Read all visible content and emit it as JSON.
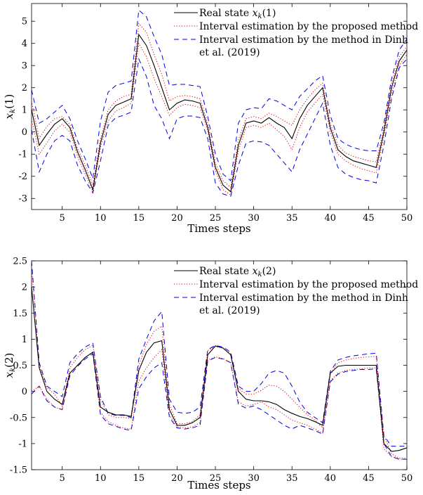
{
  "chart_data": [
    {
      "type": "line",
      "xlabel": "Times steps",
      "ylabel": "x_k(1)",
      "xlim": [
        1,
        50
      ],
      "ylim": [
        -3.5,
        5.8
      ],
      "xticks": [
        5,
        10,
        15,
        20,
        25,
        30,
        35,
        40,
        45,
        50
      ],
      "yticks": [
        -3,
        -2,
        -1,
        0,
        1,
        2,
        3,
        4,
        5
      ],
      "grid": false,
      "legend_position": "top-right",
      "legend": [
        "Real state x_k(1)",
        "Interval estimation by the proposed method",
        "Interval estimation by the method in Dinh",
        "et al. (2019)"
      ],
      "x": [
        1,
        2,
        3,
        4,
        5,
        6,
        7,
        8,
        9,
        10,
        11,
        12,
        13,
        14,
        15,
        16,
        17,
        18,
        19,
        20,
        21,
        22,
        23,
        24,
        25,
        26,
        27,
        28,
        29,
        30,
        31,
        32,
        33,
        34,
        35,
        36,
        37,
        38,
        39,
        40,
        41,
        42,
        43,
        44,
        45,
        46,
        47,
        48,
        49,
        50
      ],
      "series": [
        {
          "name": "Real state x_k(1)",
          "color": "#000000",
          "dash": "solid",
          "values": [
            1.0,
            -0.6,
            -0.1,
            0.35,
            0.6,
            0.2,
            -0.9,
            -1.7,
            -2.6,
            -0.5,
            0.8,
            1.2,
            1.35,
            1.5,
            4.4,
            3.9,
            3.0,
            2.0,
            1.0,
            1.3,
            1.45,
            1.4,
            1.3,
            0.2,
            -1.6,
            -2.4,
            -2.7,
            -0.6,
            0.4,
            0.5,
            0.4,
            0.65,
            0.4,
            0.2,
            -0.3,
            0.6,
            1.2,
            1.6,
            2.0,
            0.2,
            -0.8,
            -1.1,
            -1.3,
            -1.4,
            -1.5,
            -1.6,
            0.0,
            2.0,
            3.2,
            3.7
          ]
        },
        {
          "name": "Interval estimation by the proposed method (upper)",
          "color": "#e00000",
          "dash": "dotted",
          "values": [
            1.4,
            -0.3,
            0.25,
            0.6,
            0.7,
            0.35,
            -0.75,
            -1.5,
            -2.4,
            -0.3,
            1.0,
            1.4,
            1.6,
            1.7,
            4.9,
            4.5,
            3.5,
            2.6,
            1.4,
            1.6,
            1.65,
            1.6,
            1.5,
            0.4,
            -1.4,
            -2.2,
            -2.5,
            -0.35,
            0.6,
            0.7,
            0.6,
            0.85,
            0.7,
            0.5,
            0.3,
            1.0,
            1.5,
            1.9,
            2.2,
            0.4,
            -0.6,
            -0.95,
            -1.1,
            -1.2,
            -1.3,
            -1.35,
            0.2,
            2.2,
            3.4,
            3.85
          ]
        },
        {
          "name": "Interval estimation by the proposed method (lower)",
          "color": "#e00000",
          "dash": "dotted",
          "values": [
            0.6,
            -1.0,
            -0.5,
            0.05,
            0.35,
            0.0,
            -1.1,
            -1.9,
            -2.7,
            -0.7,
            0.5,
            0.95,
            1.1,
            1.3,
            4.0,
            3.4,
            2.4,
            1.6,
            0.75,
            1.1,
            1.25,
            1.2,
            1.1,
            0.05,
            -1.75,
            -2.6,
            -2.85,
            -0.85,
            0.2,
            0.3,
            0.2,
            0.4,
            0.1,
            -0.2,
            -0.8,
            0.2,
            0.9,
            1.3,
            1.7,
            0.0,
            -1.0,
            -1.3,
            -1.5,
            -1.65,
            -1.75,
            -1.85,
            -0.2,
            1.7,
            3.0,
            3.5
          ]
        },
        {
          "name": "Interval estimation by the method in Dinh et al. (2019) (upper)",
          "color": "#0000e0",
          "dash": "dashed",
          "values": [
            1.9,
            0.4,
            0.6,
            0.9,
            1.2,
            0.6,
            -0.4,
            -1.2,
            -2.1,
            0.5,
            1.8,
            2.1,
            2.2,
            2.3,
            5.5,
            5.2,
            4.3,
            3.5,
            2.1,
            2.15,
            2.15,
            2.1,
            2.05,
            0.7,
            -1.0,
            -1.9,
            -2.2,
            0.4,
            1.0,
            1.1,
            1.05,
            1.5,
            1.4,
            1.2,
            1.0,
            1.6,
            1.95,
            2.3,
            2.55,
            0.75,
            -0.3,
            -0.55,
            -0.7,
            -0.8,
            -0.85,
            -0.85,
            0.4,
            2.4,
            3.7,
            4.2
          ]
        },
        {
          "name": "Interval estimation by the method in Dinh et al. (2019) (lower)",
          "color": "#0000e0",
          "dash": "dashed",
          "values": [
            0.1,
            -1.8,
            -1.0,
            -0.4,
            -0.15,
            -0.4,
            -1.5,
            -2.2,
            -2.75,
            -1.3,
            0.3,
            0.65,
            0.75,
            0.9,
            3.3,
            2.5,
            1.2,
            0.6,
            -0.3,
            0.6,
            0.72,
            0.72,
            0.65,
            -0.3,
            -2.3,
            -2.8,
            -2.9,
            -1.5,
            -0.5,
            -0.4,
            -0.45,
            -0.6,
            -1.0,
            -1.4,
            -1.8,
            -0.8,
            -0.1,
            0.6,
            1.3,
            -0.6,
            -1.6,
            -1.9,
            -2.05,
            -2.15,
            -2.2,
            -2.3,
            -0.6,
            1.5,
            2.9,
            3.3
          ]
        }
      ]
    },
    {
      "type": "line",
      "xlabel": "Times steps",
      "ylabel": "x_k(2)",
      "xlim": [
        1,
        50
      ],
      "ylim": [
        -1.5,
        2.5
      ],
      "xticks": [
        5,
        10,
        15,
        20,
        25,
        30,
        35,
        40,
        45,
        50
      ],
      "yticks": [
        -1.5,
        -1,
        -0.5,
        0,
        0.5,
        1,
        1.5,
        2,
        2.5
      ],
      "grid": false,
      "legend_position": "top-right",
      "legend": [
        "Real state x_k(2)",
        "Interval estimation by the proposed method",
        "Interval estimation by the method in Dinh",
        "et al. (2019)"
      ],
      "x": [
        1,
        2,
        3,
        4,
        5,
        6,
        7,
        8,
        9,
        10,
        11,
        12,
        13,
        14,
        15,
        16,
        17,
        18,
        19,
        20,
        21,
        22,
        23,
        24,
        25,
        26,
        27,
        28,
        29,
        30,
        31,
        32,
        33,
        34,
        35,
        36,
        37,
        38,
        39,
        40,
        41,
        42,
        43,
        44,
        45,
        46,
        47,
        48,
        49,
        50
      ],
      "series": [
        {
          "name": "Real state x_k(2)",
          "color": "#000000",
          "dash": "solid",
          "values": [
            2.0,
            0.45,
            0.0,
            -0.15,
            -0.25,
            0.35,
            0.5,
            0.65,
            0.75,
            -0.3,
            -0.4,
            -0.45,
            -0.45,
            -0.48,
            0.4,
            0.75,
            0.93,
            0.97,
            -0.35,
            -0.65,
            -0.65,
            -0.6,
            -0.5,
            0.7,
            0.87,
            0.83,
            0.7,
            0.0,
            -0.15,
            -0.18,
            -0.18,
            -0.2,
            -0.25,
            -0.35,
            -0.42,
            -0.48,
            -0.52,
            -0.58,
            -0.65,
            0.35,
            0.48,
            0.5,
            0.5,
            0.5,
            0.5,
            0.5,
            -1.0,
            -1.15,
            -1.13,
            -1.08
          ]
        },
        {
          "name": "Interval estimation by the proposed method (upper)",
          "color": "#e00000",
          "dash": "dotted",
          "values": [
            2.4,
            0.5,
            0.07,
            -0.05,
            -0.28,
            0.45,
            0.65,
            0.8,
            0.88,
            -0.15,
            -0.45,
            -0.5,
            -0.5,
            -0.52,
            0.5,
            0.9,
            1.15,
            1.25,
            -0.25,
            -0.62,
            -0.62,
            -0.58,
            -0.45,
            0.78,
            0.86,
            0.83,
            0.72,
            0.05,
            -0.05,
            -0.05,
            0.02,
            0.12,
            0.1,
            0.0,
            -0.15,
            -0.3,
            -0.45,
            -0.55,
            -0.7,
            0.32,
            0.55,
            0.6,
            0.63,
            0.65,
            0.66,
            0.67,
            -0.85,
            -1.2,
            -1.28,
            -1.28
          ]
        },
        {
          "name": "Interval estimation by the proposed method (lower)",
          "color": "#e00000",
          "dash": "dotted",
          "values": [
            0.0,
            0.1,
            -0.15,
            -0.3,
            -0.35,
            0.35,
            0.5,
            0.65,
            0.75,
            -0.4,
            -0.58,
            -0.65,
            -0.7,
            -0.72,
            0.2,
            0.45,
            0.65,
            0.8,
            -0.45,
            -0.68,
            -0.7,
            -0.68,
            -0.6,
            0.6,
            0.66,
            0.63,
            0.55,
            -0.2,
            -0.28,
            -0.25,
            -0.2,
            -0.3,
            -0.35,
            -0.45,
            -0.55,
            -0.6,
            -0.65,
            -0.72,
            -0.8,
            0.2,
            0.35,
            0.4,
            0.42,
            0.43,
            0.45,
            0.45,
            -1.1,
            -1.25,
            -1.3,
            -1.3
          ]
        },
        {
          "name": "Interval estimation by the method in Dinh et al. (2019) (upper)",
          "color": "#0000e0",
          "dash": "dashed",
          "values": [
            2.5,
            0.55,
            0.1,
            0.0,
            -0.1,
            0.55,
            0.72,
            0.85,
            0.93,
            -0.1,
            -0.42,
            -0.46,
            -0.46,
            -0.5,
            0.62,
            1.0,
            1.35,
            1.53,
            -0.15,
            -0.4,
            -0.42,
            -0.4,
            -0.3,
            0.8,
            0.88,
            0.85,
            0.75,
            0.1,
            0.0,
            0.0,
            0.15,
            0.35,
            0.4,
            0.35,
            0.1,
            -0.2,
            -0.4,
            -0.5,
            -0.6,
            0.38,
            0.6,
            0.65,
            0.68,
            0.7,
            0.72,
            0.73,
            -0.85,
            -1.05,
            -1.05,
            -1.05
          ]
        },
        {
          "name": "Interval estimation by the method in Dinh et al. (2019) (lower)",
          "color": "#0000e0",
          "dash": "dashed",
          "values": [
            -0.05,
            0.1,
            -0.18,
            -0.3,
            -0.35,
            0.3,
            0.48,
            0.62,
            0.72,
            -0.45,
            -0.62,
            -0.67,
            -0.72,
            -0.75,
            0.05,
            0.28,
            0.45,
            0.55,
            -0.5,
            -0.7,
            -0.72,
            -0.7,
            -0.65,
            0.58,
            0.65,
            0.62,
            0.55,
            -0.25,
            -0.32,
            -0.28,
            -0.35,
            -0.45,
            -0.55,
            -0.65,
            -0.72,
            -0.65,
            -0.7,
            -0.75,
            -0.82,
            0.18,
            0.33,
            0.38,
            0.4,
            0.42,
            0.42,
            0.43,
            -1.0,
            -1.25,
            -1.3,
            -1.3
          ]
        }
      ]
    }
  ]
}
